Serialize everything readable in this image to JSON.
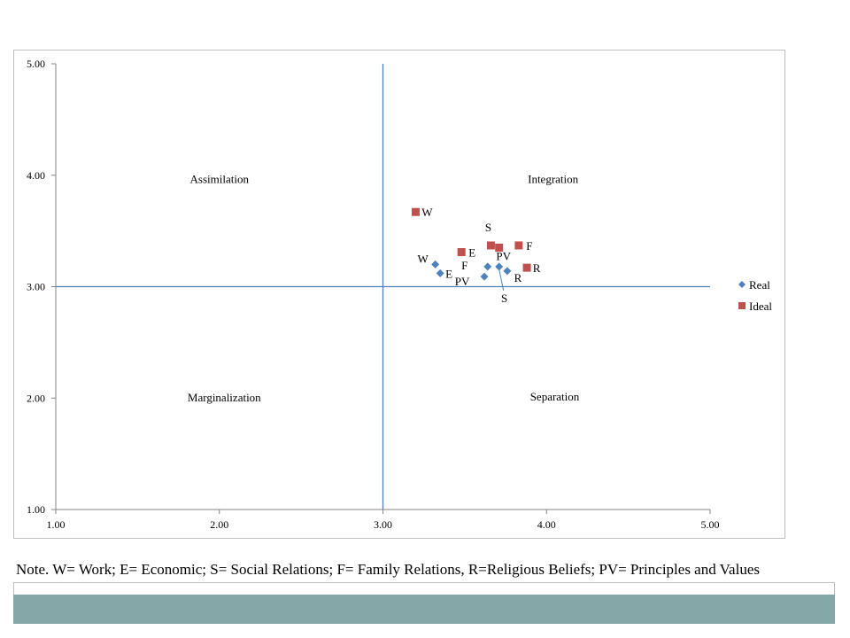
{
  "chart_data": {
    "type": "scatter",
    "xlim": [
      1.0,
      5.0
    ],
    "ylim": [
      1.0,
      5.0
    ],
    "xticks": [
      "1.00",
      "2.00",
      "3.00",
      "4.00",
      "5.00"
    ],
    "yticks": [
      "1.00",
      "2.00",
      "3.00",
      "4.00",
      "5.00"
    ],
    "grid": false,
    "divider_lines": {
      "x": 3.0,
      "y": 3.0,
      "color": "#4f81bd"
    },
    "quadrant_labels": [
      {
        "text": "Assimilation",
        "x": 2.0,
        "y": 3.93
      },
      {
        "text": "Integration",
        "x": 4.04,
        "y": 3.93
      },
      {
        "text": "Marginalization",
        "x": 2.03,
        "y": 1.97
      },
      {
        "text": "Separation",
        "x": 4.05,
        "y": 1.98
      }
    ],
    "legend_position": "right",
    "series": [
      {
        "name": "Real",
        "marker": "diamond",
        "color": "#4f81bd",
        "points": [
          {
            "label": "W",
            "x": 3.32,
            "y": 3.2
          },
          {
            "label": "E",
            "x": 3.35,
            "y": 3.12
          },
          {
            "label": "F",
            "x": 3.64,
            "y": 3.18
          },
          {
            "label": "PV",
            "x": 3.62,
            "y": 3.09
          },
          {
            "label": "S",
            "x": 3.71,
            "y": 3.18
          },
          {
            "label": "R",
            "x": 3.76,
            "y": 3.14
          }
        ]
      },
      {
        "name": "Ideal",
        "marker": "square",
        "color": "#c0504d",
        "points": [
          {
            "label": "W",
            "x": 3.2,
            "y": 3.67
          },
          {
            "label": "E",
            "x": 3.48,
            "y": 3.31
          },
          {
            "label": "S",
            "x": 3.66,
            "y": 3.37
          },
          {
            "label": "PV",
            "x": 3.71,
            "y": 3.35
          },
          {
            "label": "F",
            "x": 3.83,
            "y": 3.37
          },
          {
            "label": "R",
            "x": 3.88,
            "y": 3.17
          }
        ]
      }
    ]
  },
  "note": "Note. W= Work; E= Economic; S= Social Relations; F= Family Relations, R=Religious Beliefs; PV= Principles and Values",
  "colors": {
    "bottom_bar": "#86a7a7",
    "frame_border": "#bdbdbd"
  }
}
